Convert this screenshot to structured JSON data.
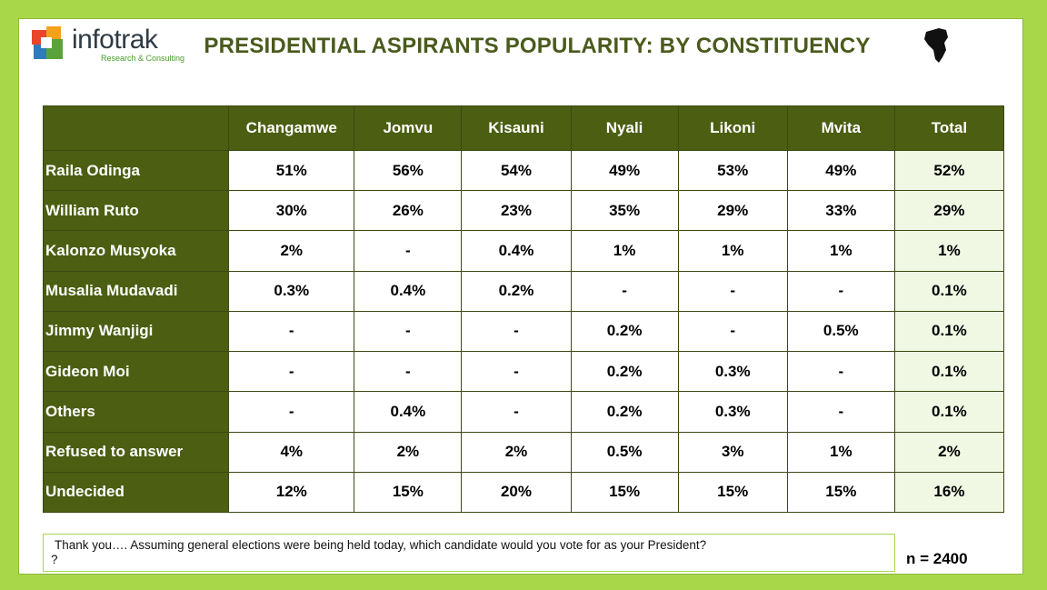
{
  "header": {
    "logo_name": "infotrak",
    "logo_tagline": "Research & Consulting",
    "partner_logo": "HAKI AFRICA",
    "colors": {
      "header_green": "#4b5e12",
      "background_green": "#a8d84a",
      "total_column": "#f0f8e4"
    }
  },
  "chart_data": {
    "type": "table",
    "title": "PRESIDENTIAL ASPIRANTS POPULARITY: BY CONSTITUENCY",
    "columns": [
      "Changamwe",
      "Jomvu",
      "Kisauni",
      "Nyali",
      "Likoni",
      "Mvita",
      "Total"
    ],
    "rows": [
      {
        "label": "Raila Odinga",
        "values": [
          "51%",
          "56%",
          "54%",
          "49%",
          "53%",
          "49%",
          "52%"
        ]
      },
      {
        "label": "William Ruto",
        "values": [
          "30%",
          "26%",
          "23%",
          "35%",
          "29%",
          "33%",
          "29%"
        ]
      },
      {
        "label": "Kalonzo Musyoka",
        "values": [
          "2%",
          "-",
          "0.4%",
          "1%",
          "1%",
          "1%",
          "1%"
        ]
      },
      {
        "label": "Musalia Mudavadi",
        "values": [
          "0.3%",
          "0.4%",
          "0.2%",
          "-",
          "-",
          "-",
          "0.1%"
        ]
      },
      {
        "label": "Jimmy Wanjigi",
        "values": [
          "-",
          "-",
          "-",
          "0.2%",
          "-",
          "0.5%",
          "0.1%"
        ]
      },
      {
        "label": "Gideon Moi",
        "values": [
          "-",
          "-",
          "-",
          "0.2%",
          "0.3%",
          "-",
          "0.1%"
        ]
      },
      {
        "label": "Others",
        "values": [
          "-",
          "0.4%",
          "-",
          "0.2%",
          "0.3%",
          "-",
          "0.1%"
        ]
      },
      {
        "label": "Refused to answer",
        "values": [
          "4%",
          "2%",
          "2%",
          "0.5%",
          "3%",
          "1%",
          "2%"
        ]
      },
      {
        "label": "Undecided",
        "values": [
          "12%",
          "15%",
          "20%",
          "15%",
          "15%",
          "15%",
          "16%"
        ]
      }
    ]
  },
  "footer": {
    "question_line1": "Thank you…. Assuming general elections were being held today, which candidate would you vote for as your President?",
    "question_line2": "?",
    "sample_size": "n = 2400"
  }
}
